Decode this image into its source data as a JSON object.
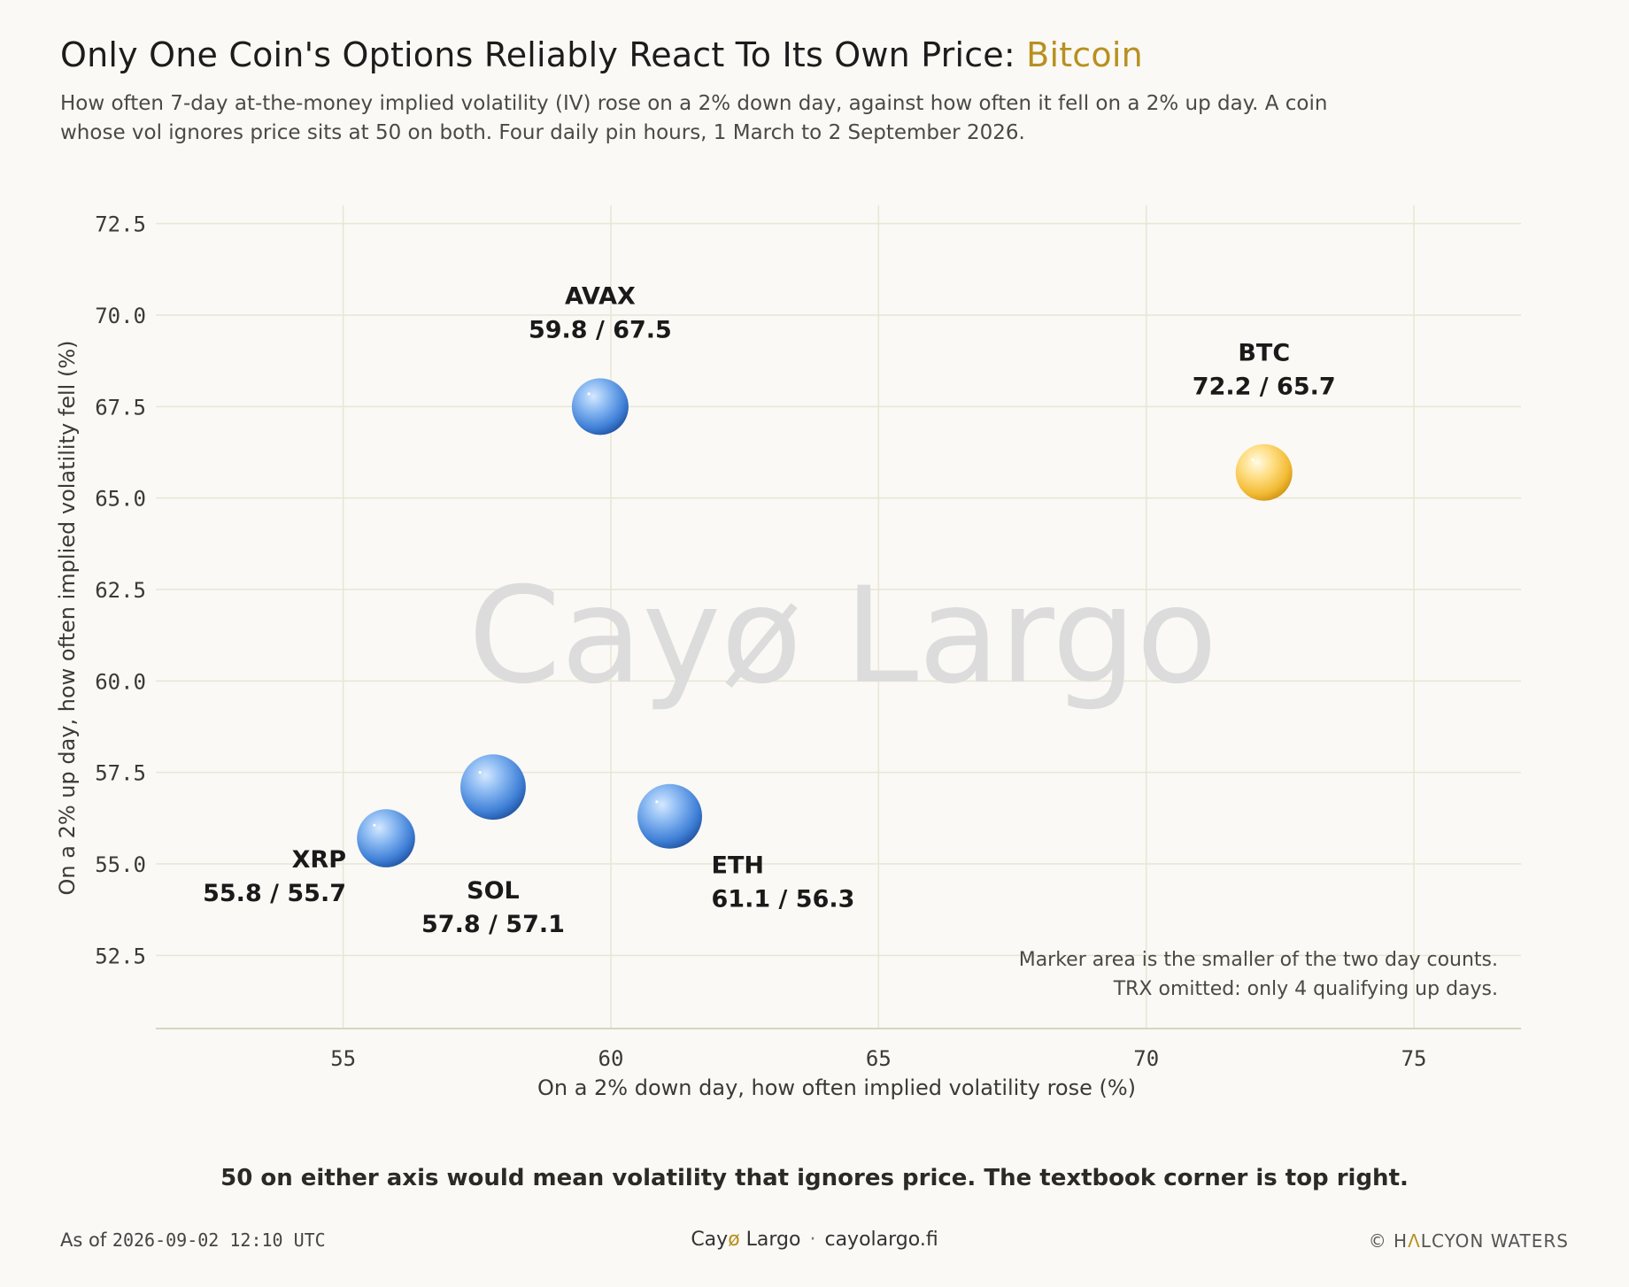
{
  "header": {
    "title_main": "Only One Coin's Options Reliably React To Its Own Price: ",
    "title_accent": "Bitcoin",
    "subtitle_line1": "How often 7-day at-the-money implied volatility (IV) rose on a 2% down day, against how often it fell on a 2% up day. A coin",
    "subtitle_line2": "whose vol ignores price sits at 50 on both. Four daily pin hours, 1 March to 2 September 2026."
  },
  "colors": {
    "accent": "#b8901f",
    "blue_marker": "#3d7ed6",
    "gold_marker": "#f2bb34",
    "grid": "#e8e6d3",
    "watermark": "#d9d9d9"
  },
  "chart_data": {
    "type": "scatter",
    "xlabel": "On a 2% down day, how often implied volatility rose (%)",
    "ylabel": "On a 2% up day, how often implied volatility fell (%)",
    "xlim": [
      51.5,
      77
    ],
    "ylim": [
      50.5,
      73
    ],
    "xticks": [
      55,
      60,
      65,
      70,
      75
    ],
    "yticks": [
      52.5,
      55.0,
      57.5,
      60.0,
      62.5,
      65.0,
      67.5,
      70.0,
      72.5
    ],
    "grid": true,
    "points": [
      {
        "name": "AVAX",
        "x": 59.8,
        "y": 67.5,
        "label": "59.8 / 67.5",
        "highlight": false,
        "size": 1.0
      },
      {
        "name": "BTC",
        "x": 72.2,
        "y": 65.7,
        "label": "72.2 / 65.7",
        "highlight": true,
        "size": 1.0
      },
      {
        "name": "XRP",
        "x": 55.8,
        "y": 55.7,
        "label": "55.8 / 55.7",
        "highlight": false,
        "size": 1.05
      },
      {
        "name": "SOL",
        "x": 57.8,
        "y": 57.1,
        "label": "57.8 / 57.1",
        "highlight": false,
        "size": 1.33
      },
      {
        "name": "ETH",
        "x": 61.1,
        "y": 56.3,
        "label": "61.1 / 56.3",
        "highlight": false,
        "size": 1.3
      }
    ],
    "watermark": "Cayø Largo",
    "notes": [
      "Marker area is the smaller of the two day counts.",
      "TRX omitted: only 4 qualifying up days."
    ]
  },
  "takeaway": "50 on either axis would mean volatility that ignores price. The textbook corner is top right.",
  "footer": {
    "as_of_prefix": "As of ",
    "as_of_time": "2026-09-02 12:10 UTC",
    "brand_pre": "Cay",
    "brand_o": "ø",
    "brand_post": " Largo",
    "separator": "·",
    "site": "cayolargo.fi",
    "copyright_pre": "© H",
    "copyright_a": "Λ",
    "copyright_post": "LCYON WATERS"
  }
}
